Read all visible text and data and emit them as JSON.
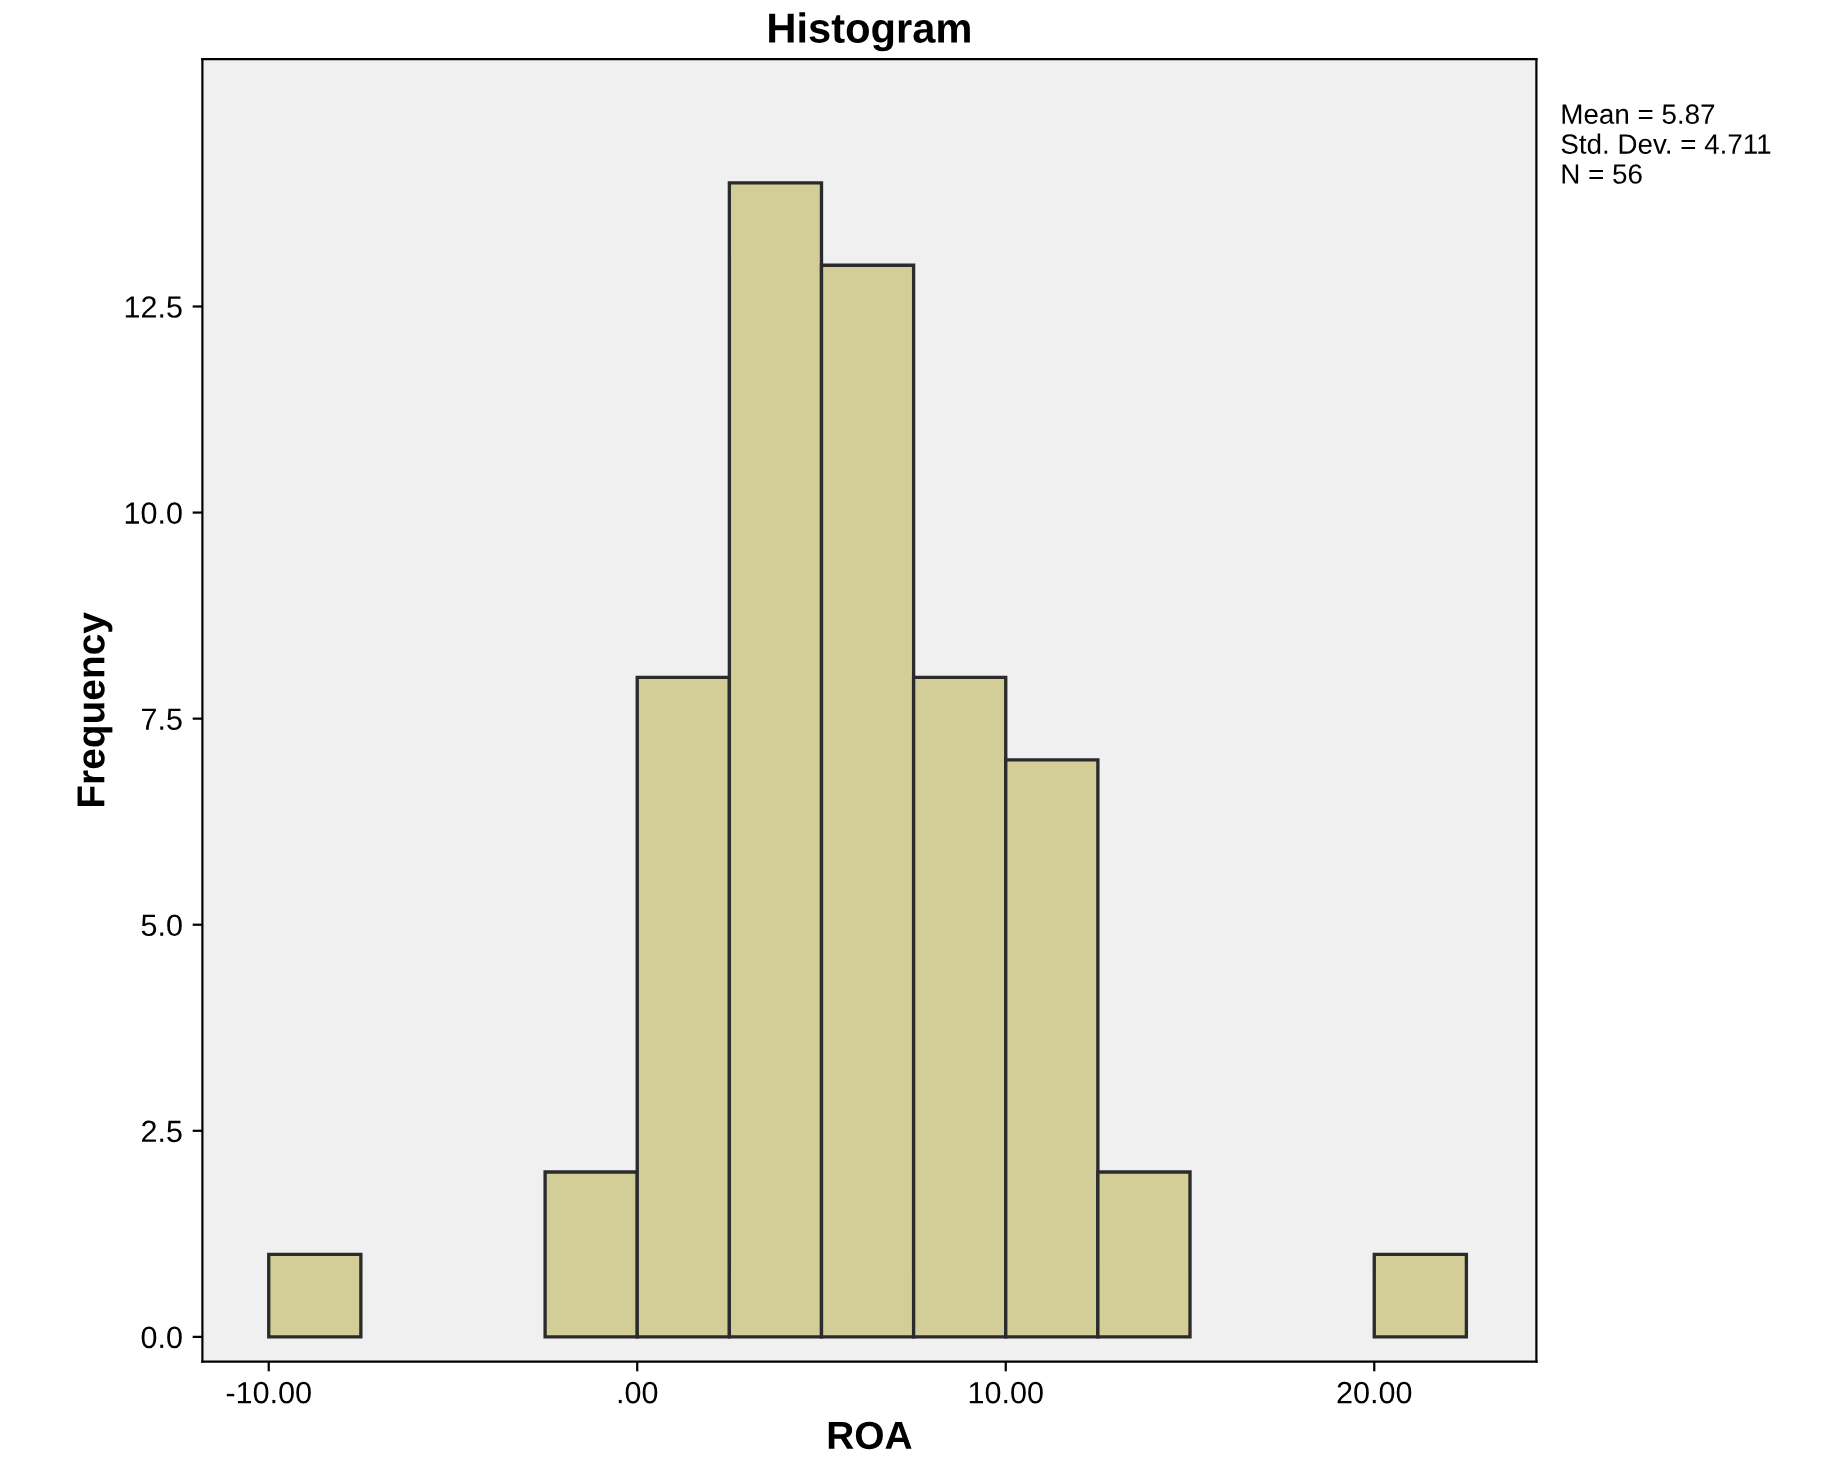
{
  "chart_data": {
    "type": "histogram",
    "title": "Histogram",
    "xlabel": "ROA",
    "ylabel": "Frequency",
    "bins": [
      -10,
      -7.5,
      -5,
      -2.5,
      0,
      2.5,
      5,
      7.5,
      10,
      12.5,
      15,
      17.5,
      20,
      22.5
    ],
    "values": [
      1,
      0,
      0,
      2,
      8,
      14,
      13,
      8,
      7,
      2,
      0,
      0,
      1
    ],
    "color": "#d3cd97",
    "xlim": [
      -11.8,
      24.4
    ],
    "ylim": [
      -0.3,
      15.5
    ],
    "xticks": [
      {
        "value": -10,
        "label": "-10.00"
      },
      {
        "value": 0,
        "label": ".00"
      },
      {
        "value": 10,
        "label": "10.00"
      },
      {
        "value": 20,
        "label": "20.00"
      }
    ],
    "yticks": [
      {
        "value": 0,
        "label": "0.0"
      },
      {
        "value": 2.5,
        "label": "2.5"
      },
      {
        "value": 5,
        "label": "5.0"
      },
      {
        "value": 7.5,
        "label": "7.5"
      },
      {
        "value": 10,
        "label": "10.0"
      },
      {
        "value": 12.5,
        "label": "12.5"
      }
    ],
    "annotations": [
      "Mean = 5.87\nStd. Dev. = 4.711\nN = 56"
    ],
    "grid": false
  }
}
